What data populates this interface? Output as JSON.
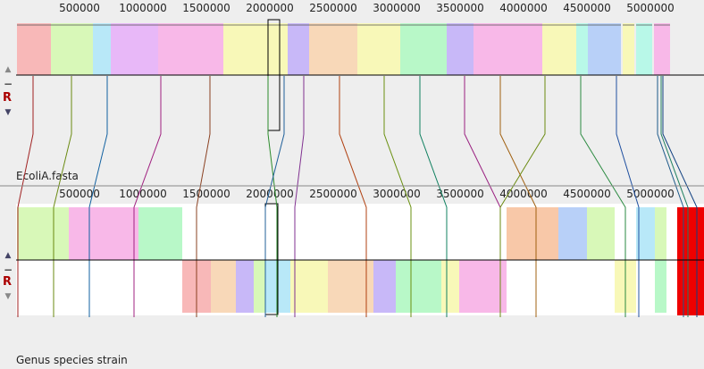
{
  "genome_top": {
    "name": "EcoliA.fasta",
    "ruler_ticks": [
      "500000",
      "1000000",
      "1500000",
      "2000000",
      "2500000",
      "3000000",
      "3500000",
      "4000000",
      "4500000",
      "5000000"
    ]
  },
  "genome_bottom": {
    "name": "Genus species strain",
    "ruler_ticks": [
      "500000",
      "1000000",
      "1500000",
      "2000000",
      "2500000",
      "3000000",
      "3500000",
      "4000000",
      "4500000",
      "5000000"
    ]
  },
  "controls": {
    "up_icon": "▲",
    "down_icon": "▼",
    "minus_label": "−",
    "reverse_label": "R"
  },
  "colors": {
    "lcb": [
      "#f8b8b8",
      "#d8f8b8",
      "#b8f8c8",
      "#b8e8f8",
      "#e8b8f8",
      "#f8d8b8",
      "#f8f8b8",
      "#c8b8f8",
      "#b8f8e8",
      "#f8b8e8",
      "#b8d0f8",
      "#f8c8a8"
    ],
    "highlight_red": "#ee0000",
    "axis": "#000000",
    "background": "#eeeeee"
  }
}
